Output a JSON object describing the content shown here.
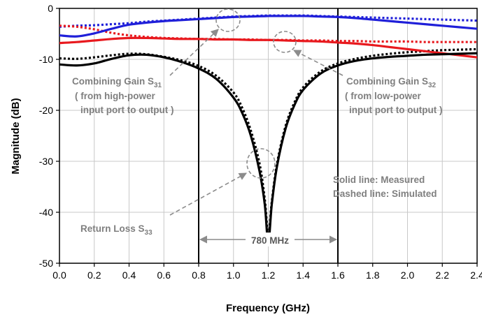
{
  "chart_data": {
    "type": "line",
    "xlabel": "Frequency (GHz)",
    "ylabel": "Magnitude (dB)",
    "xlim": [
      0,
      2.4
    ],
    "ylim": [
      -50,
      0
    ],
    "x_ticks": [
      "0.0",
      "0.2",
      "0.4",
      "0.6",
      "0.8",
      "1.0",
      "1.2",
      "1.4",
      "1.6",
      "1.8",
      "2.0",
      "2.2",
      "2.4"
    ],
    "y_ticks": [
      "0",
      "-10",
      "-20",
      "-30",
      "-40",
      "-50"
    ],
    "grid": true,
    "colors": {
      "s31": "#1f1fd9",
      "s32": "#e8191e",
      "s33": "#000000",
      "annotation": "#8c8c8c"
    },
    "series": [
      {
        "key": "s31_measured",
        "style": "solid",
        "x": [
          0.0,
          0.1,
          0.2,
          0.3,
          0.4,
          0.5,
          0.6,
          0.7,
          0.8,
          0.9,
          1.0,
          1.1,
          1.2,
          1.3,
          1.4,
          1.5,
          1.6,
          1.7,
          1.8,
          1.9,
          2.0,
          2.1,
          2.2,
          2.3,
          2.4
        ],
        "y": [
          -5.3,
          -5.5,
          -4.9,
          -4.0,
          -3.2,
          -2.8,
          -2.5,
          -2.3,
          -2.1,
          -1.9,
          -1.7,
          -1.6,
          -1.5,
          -1.5,
          -1.5,
          -1.6,
          -1.7,
          -1.9,
          -2.2,
          -2.5,
          -2.8,
          -3.1,
          -3.4,
          -3.7,
          -4.0
        ]
      },
      {
        "key": "s31_simulated",
        "style": "dashed",
        "x": [
          0.0,
          0.1,
          0.2,
          0.3,
          0.4,
          0.5,
          0.6,
          0.7,
          0.8,
          0.9,
          1.0,
          1.1,
          1.2,
          1.3,
          1.4,
          1.5,
          1.6,
          1.7,
          1.8,
          1.9,
          2.0,
          2.1,
          2.2,
          2.3,
          2.4
        ],
        "y": [
          -3.6,
          -3.4,
          -3.3,
          -3.1,
          -2.9,
          -2.6,
          -2.4,
          -2.2,
          -2.0,
          -1.8,
          -1.6,
          -1.5,
          -1.4,
          -1.4,
          -1.4,
          -1.5,
          -1.6,
          -1.7,
          -1.8,
          -1.9,
          -2.0,
          -2.1,
          -2.2,
          -2.3,
          -2.4
        ]
      },
      {
        "key": "s32_measured",
        "style": "solid",
        "x": [
          0.0,
          0.1,
          0.2,
          0.3,
          0.4,
          0.5,
          0.6,
          0.7,
          0.8,
          0.9,
          1.0,
          1.1,
          1.2,
          1.3,
          1.4,
          1.5,
          1.6,
          1.7,
          1.8,
          1.9,
          2.0,
          2.1,
          2.2,
          2.3,
          2.4
        ],
        "y": [
          -6.8,
          -6.6,
          -6.3,
          -6.0,
          -5.8,
          -5.8,
          -5.9,
          -6.0,
          -6.0,
          -6.1,
          -6.1,
          -6.2,
          -6.2,
          -6.3,
          -6.4,
          -6.5,
          -6.7,
          -6.9,
          -7.2,
          -7.6,
          -8.0,
          -8.4,
          -8.8,
          -9.2,
          -9.6
        ]
      },
      {
        "key": "s32_simulated",
        "style": "dashed",
        "x": [
          0.0,
          0.1,
          0.2,
          0.3,
          0.4,
          0.5,
          0.6,
          0.7,
          0.8,
          0.9,
          1.0,
          1.1,
          1.2,
          1.3,
          1.4,
          1.5,
          1.6,
          1.7,
          1.8,
          1.9,
          2.0,
          2.1,
          2.2,
          2.3,
          2.4
        ],
        "y": [
          -3.4,
          -3.6,
          -4.1,
          -4.8,
          -5.3,
          -5.6,
          -5.8,
          -5.9,
          -6.0,
          -6.0,
          -6.1,
          -6.1,
          -6.2,
          -6.2,
          -6.3,
          -6.3,
          -6.4,
          -6.4,
          -6.5,
          -6.5,
          -6.5,
          -6.6,
          -6.6,
          -6.6,
          -6.6
        ]
      },
      {
        "key": "s33_measured",
        "style": "solid",
        "x": [
          0.0,
          0.1,
          0.2,
          0.3,
          0.4,
          0.5,
          0.6,
          0.7,
          0.8,
          0.9,
          1.0,
          1.05,
          1.1,
          1.15,
          1.18,
          1.2,
          1.22,
          1.25,
          1.3,
          1.35,
          1.4,
          1.5,
          1.6,
          1.7,
          1.8,
          1.9,
          2.0,
          2.1,
          2.2,
          2.3,
          2.4
        ],
        "y": [
          -11.0,
          -11.2,
          -10.8,
          -9.9,
          -9.2,
          -9.1,
          -9.6,
          -10.5,
          -11.8,
          -13.8,
          -17.5,
          -20.5,
          -25.0,
          -32.0,
          -38.5,
          -46.0,
          -38.5,
          -31.0,
          -23.5,
          -19.0,
          -16.0,
          -12.8,
          -11.2,
          -10.3,
          -9.8,
          -9.5,
          -9.3,
          -9.1,
          -9.0,
          -8.9,
          -8.8
        ]
      },
      {
        "key": "s33_simulated",
        "style": "dashed",
        "x": [
          0.0,
          0.1,
          0.2,
          0.3,
          0.4,
          0.5,
          0.6,
          0.7,
          0.8,
          0.9,
          1.0,
          1.05,
          1.1,
          1.15,
          1.18,
          1.2,
          1.22,
          1.25,
          1.3,
          1.35,
          1.4,
          1.5,
          1.6,
          1.7,
          1.8,
          1.9,
          2.0,
          2.1,
          2.2,
          2.3,
          2.4
        ],
        "y": [
          -9.8,
          -9.9,
          -9.6,
          -9.2,
          -8.9,
          -9.0,
          -9.5,
          -10.2,
          -11.3,
          -13.2,
          -16.5,
          -19.5,
          -24.0,
          -30.5,
          -37.5,
          -44.5,
          -38.0,
          -30.5,
          -23.0,
          -18.5,
          -15.5,
          -12.4,
          -10.8,
          -9.9,
          -9.3,
          -8.9,
          -8.6,
          -8.4,
          -8.2,
          -8.1,
          -8.0
        ]
      }
    ],
    "bandwidth_marker": {
      "x_start": 0.8,
      "x_end": 1.6,
      "label": "780 MHz"
    },
    "annotations": {
      "s31_label_main": "Combining Gain S",
      "s31_label_sub": "31",
      "s31_note_1": "( from high-power",
      "s31_note_2": "input port to output )",
      "s32_label_main": "Combining Gain S",
      "s32_label_sub": "32",
      "s32_note_1": "( from low-power",
      "s32_note_2": "input port to output )",
      "s33_label_main": "Return Loss S",
      "s33_label_sub": "33",
      "legend_solid": "Solid line: Measured",
      "legend_dashed": "Dashed line: Simulated"
    }
  }
}
